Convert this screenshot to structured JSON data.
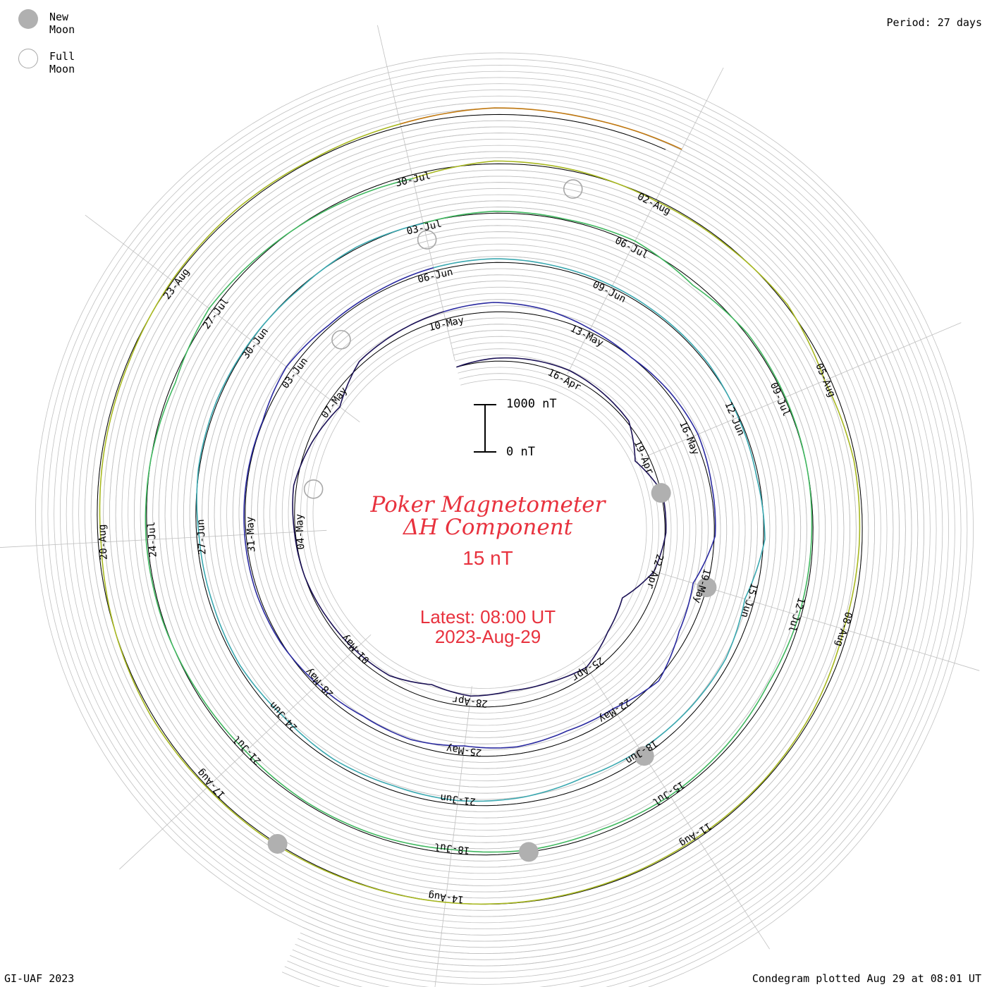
{
  "legend": {
    "new_moon_label": "New Moon",
    "full_moon_label": "Full Moon"
  },
  "period_label": "Period: 27 days",
  "title_line1": "Poker Magnetometer",
  "title_line2": "ΔH Component",
  "units_label": "15 nT",
  "latest_line1": "Latest: 08:00 UT",
  "latest_line2": "2023-Aug-29",
  "scale_bar": {
    "top_label": "1000 nT",
    "bottom_label": "0 nT"
  },
  "footer_left": "GI-UAF 2023",
  "footer_right": "Condegram plotted Aug 29 at 08:01 UT",
  "colors": {
    "title": "#e8323e",
    "grid": "#c0c0c0",
    "moon_new": "#b0b0b0",
    "moon_full": "#a8a8a8"
  },
  "chart_data": {
    "type": "line",
    "chart_style": "spiral condegram (polar time series)",
    "period_days": 27,
    "start_date": "2023-04-13",
    "end_date": "2023-08-29",
    "y_unit": "nT",
    "scale_ticks": [
      0,
      1000
    ],
    "date_labels": [
      {
        "label": "16-Apr",
        "date": "2023-04-16"
      },
      {
        "label": "19-Apr",
        "date": "2023-04-19"
      },
      {
        "label": "22-Apr",
        "date": "2023-04-22"
      },
      {
        "label": "25-Apr",
        "date": "2023-04-25"
      },
      {
        "label": "28-Apr",
        "date": "2023-04-28"
      },
      {
        "label": "01-May",
        "date": "2023-05-01"
      },
      {
        "label": "04-May",
        "date": "2023-05-04"
      },
      {
        "label": "07-May",
        "date": "2023-05-07"
      },
      {
        "label": "10-May",
        "date": "2023-05-10"
      },
      {
        "label": "13-May",
        "date": "2023-05-13"
      },
      {
        "label": "16-May",
        "date": "2023-05-16"
      },
      {
        "label": "19-May",
        "date": "2023-05-19"
      },
      {
        "label": "22-May",
        "date": "2023-05-22"
      },
      {
        "label": "25-May",
        "date": "2023-05-25"
      },
      {
        "label": "28-May",
        "date": "2023-05-28"
      },
      {
        "label": "31-May",
        "date": "2023-05-31"
      },
      {
        "label": "03-Jun",
        "date": "2023-06-03"
      },
      {
        "label": "06-Jun",
        "date": "2023-06-06"
      },
      {
        "label": "09-Jun",
        "date": "2023-06-09"
      },
      {
        "label": "12-Jun",
        "date": "2023-06-12"
      },
      {
        "label": "15-Jun",
        "date": "2023-06-15"
      },
      {
        "label": "18-Jun",
        "date": "2023-06-18"
      },
      {
        "label": "21-Jun",
        "date": "2023-06-21"
      },
      {
        "label": "24-Jun",
        "date": "2023-06-24"
      },
      {
        "label": "27-Jun",
        "date": "2023-06-27"
      },
      {
        "label": "30-Jun",
        "date": "2023-06-30"
      },
      {
        "label": "03-Jul",
        "date": "2023-07-03"
      },
      {
        "label": "06-Jul",
        "date": "2023-07-06"
      },
      {
        "label": "09-Jul",
        "date": "2023-07-09"
      },
      {
        "label": "12-Jul",
        "date": "2023-07-12"
      },
      {
        "label": "15-Jul",
        "date": "2023-07-15"
      },
      {
        "label": "18-Jul",
        "date": "2023-07-18"
      },
      {
        "label": "21-Jul",
        "date": "2023-07-21"
      },
      {
        "label": "24-Jul",
        "date": "2023-07-24"
      },
      {
        "label": "27-Jul",
        "date": "2023-07-27"
      },
      {
        "label": "30-Jul",
        "date": "2023-07-30"
      },
      {
        "label": "02-Aug",
        "date": "2023-08-02"
      },
      {
        "label": "05-Aug",
        "date": "2023-08-05"
      },
      {
        "label": "08-Aug",
        "date": "2023-08-08"
      },
      {
        "label": "11-Aug",
        "date": "2023-08-11"
      },
      {
        "label": "14-Aug",
        "date": "2023-08-14"
      },
      {
        "label": "17-Aug",
        "date": "2023-08-17"
      },
      {
        "label": "20-Aug",
        "date": "2023-08-20"
      },
      {
        "label": "23-Aug",
        "date": "2023-08-23"
      }
    ],
    "new_moons": [
      "2023-04-20",
      "2023-05-19",
      "2023-06-18",
      "2023-07-17",
      "2023-08-16"
    ],
    "full_moons": [
      "2023-05-05",
      "2023-06-04",
      "2023-07-03",
      "2023-08-01"
    ],
    "dH_series": [
      {
        "date": "2023-04-13",
        "value": 0
      },
      {
        "date": "2023-04-14",
        "value": 60
      },
      {
        "date": "2023-04-15",
        "value": 90
      },
      {
        "date": "2023-04-16",
        "value": 120
      },
      {
        "date": "2023-04-17",
        "value": 80
      },
      {
        "date": "2023-04-18",
        "value": 40
      },
      {
        "date": "2023-04-19",
        "value": -300
      },
      {
        "date": "2023-04-20",
        "value": 30
      },
      {
        "date": "2023-04-21",
        "value": 20
      },
      {
        "date": "2023-04-22",
        "value": -120
      },
      {
        "date": "2023-04-23",
        "value": -550
      },
      {
        "date": "2023-04-24",
        "value": -400
      },
      {
        "date": "2023-04-25",
        "value": -150
      },
      {
        "date": "2023-04-26",
        "value": -250
      },
      {
        "date": "2023-04-27",
        "value": -300
      },
      {
        "date": "2023-04-28",
        "value": -220
      },
      {
        "date": "2023-04-29",
        "value": -300
      },
      {
        "date": "2023-04-30",
        "value": -100
      },
      {
        "date": "2023-05-01",
        "value": -80
      },
      {
        "date": "2023-05-02",
        "value": -50
      },
      {
        "date": "2023-05-03",
        "value": 0
      },
      {
        "date": "2023-05-04",
        "value": 20
      },
      {
        "date": "2023-05-05",
        "value": 60
      },
      {
        "date": "2023-05-06",
        "value": -80
      },
      {
        "date": "2023-05-07",
        "value": -250
      },
      {
        "date": "2023-05-08",
        "value": 80
      },
      {
        "date": "2023-05-09",
        "value": 120
      },
      {
        "date": "2023-05-10",
        "value": 160
      },
      {
        "date": "2023-05-11",
        "value": 200
      },
      {
        "date": "2023-05-12",
        "value": 150
      },
      {
        "date": "2023-05-13",
        "value": 60
      },
      {
        "date": "2023-05-14",
        "value": 0
      },
      {
        "date": "2023-05-15",
        "value": 60
      },
      {
        "date": "2023-05-16",
        "value": 100
      },
      {
        "date": "2023-05-17",
        "value": 40
      },
      {
        "date": "2023-05-18",
        "value": 20
      },
      {
        "date": "2023-05-19",
        "value": -300
      },
      {
        "date": "2023-05-20",
        "value": -200
      },
      {
        "date": "2023-05-21",
        "value": 50
      },
      {
        "date": "2023-05-22",
        "value": -150
      },
      {
        "date": "2023-05-23",
        "value": -200
      },
      {
        "date": "2023-05-24",
        "value": -150
      },
      {
        "date": "2023-05-25",
        "value": -200
      },
      {
        "date": "2023-05-26",
        "value": -100
      },
      {
        "date": "2023-05-27",
        "value": -120
      },
      {
        "date": "2023-05-28",
        "value": -50
      },
      {
        "date": "2023-05-29",
        "value": 20
      },
      {
        "date": "2023-05-30",
        "value": 40
      },
      {
        "date": "2023-05-31",
        "value": 30
      },
      {
        "date": "2023-06-01",
        "value": 20
      },
      {
        "date": "2023-06-02",
        "value": 10
      },
      {
        "date": "2023-06-03",
        "value": 120
      },
      {
        "date": "2023-06-04",
        "value": 40
      },
      {
        "date": "2023-06-05",
        "value": 40
      },
      {
        "date": "2023-06-06",
        "value": 70
      },
      {
        "date": "2023-06-07",
        "value": 80
      },
      {
        "date": "2023-06-08",
        "value": 50
      },
      {
        "date": "2023-06-09",
        "value": 40
      },
      {
        "date": "2023-06-10",
        "value": 30
      },
      {
        "date": "2023-06-11",
        "value": 30
      },
      {
        "date": "2023-06-12",
        "value": -20
      },
      {
        "date": "2023-06-13",
        "value": -40
      },
      {
        "date": "2023-06-14",
        "value": 30
      },
      {
        "date": "2023-06-15",
        "value": -200
      },
      {
        "date": "2023-06-16",
        "value": -100
      },
      {
        "date": "2023-06-17",
        "value": -120
      },
      {
        "date": "2023-06-18",
        "value": -150
      },
      {
        "date": "2023-06-19",
        "value": -200
      },
      {
        "date": "2023-06-20",
        "value": -120
      },
      {
        "date": "2023-06-21",
        "value": -80
      },
      {
        "date": "2023-06-22",
        "value": -100
      },
      {
        "date": "2023-06-23",
        "value": -60
      },
      {
        "date": "2023-06-24",
        "value": -100
      },
      {
        "date": "2023-06-25",
        "value": -40
      },
      {
        "date": "2023-06-26",
        "value": -60
      },
      {
        "date": "2023-06-27",
        "value": -50
      },
      {
        "date": "2023-06-28",
        "value": 20
      },
      {
        "date": "2023-06-29",
        "value": 30
      },
      {
        "date": "2023-06-30",
        "value": 10
      },
      {
        "date": "2023-07-01",
        "value": -20
      },
      {
        "date": "2023-07-02",
        "value": 30
      },
      {
        "date": "2023-07-03",
        "value": -10
      },
      {
        "date": "2023-07-04",
        "value": 40
      },
      {
        "date": "2023-07-05",
        "value": 20
      },
      {
        "date": "2023-07-06",
        "value": 60
      },
      {
        "date": "2023-07-07",
        "value": -80
      },
      {
        "date": "2023-07-08",
        "value": 30
      },
      {
        "date": "2023-07-09",
        "value": 20
      },
      {
        "date": "2023-07-10",
        "value": 0
      },
      {
        "date": "2023-07-11",
        "value": -30
      },
      {
        "date": "2023-07-12",
        "value": -50
      },
      {
        "date": "2023-07-13",
        "value": -100
      },
      {
        "date": "2023-07-14",
        "value": -60
      },
      {
        "date": "2023-07-15",
        "value": -40
      },
      {
        "date": "2023-07-16",
        "value": -80
      },
      {
        "date": "2023-07-17",
        "value": -40
      },
      {
        "date": "2023-07-18",
        "value": -80
      },
      {
        "date": "2023-07-19",
        "value": -40
      },
      {
        "date": "2023-07-20",
        "value": -30
      },
      {
        "date": "2023-07-21",
        "value": -60
      },
      {
        "date": "2023-07-22",
        "value": -30
      },
      {
        "date": "2023-07-23",
        "value": 20
      },
      {
        "date": "2023-07-24",
        "value": 30
      },
      {
        "date": "2023-07-25",
        "value": 0
      },
      {
        "date": "2023-07-26",
        "value": -60
      },
      {
        "date": "2023-07-27",
        "value": 80
      },
      {
        "date": "2023-07-28",
        "value": 20
      },
      {
        "date": "2023-07-29",
        "value": -30
      },
      {
        "date": "2023-07-30",
        "value": -80
      },
      {
        "date": "2023-07-31",
        "value": 60
      },
      {
        "date": "2023-08-01",
        "value": 30
      },
      {
        "date": "2023-08-02",
        "value": -30
      },
      {
        "date": "2023-08-03",
        "value": -20
      },
      {
        "date": "2023-08-04",
        "value": 30
      },
      {
        "date": "2023-08-05",
        "value": -120
      },
      {
        "date": "2023-08-06",
        "value": -40
      },
      {
        "date": "2023-08-07",
        "value": -60
      },
      {
        "date": "2023-08-08",
        "value": -100
      },
      {
        "date": "2023-08-09",
        "value": -40
      },
      {
        "date": "2023-08-10",
        "value": -20
      },
      {
        "date": "2023-08-11",
        "value": -30
      },
      {
        "date": "2023-08-12",
        "value": -20
      },
      {
        "date": "2023-08-13",
        "value": -10
      },
      {
        "date": "2023-08-14",
        "value": 0
      },
      {
        "date": "2023-08-15",
        "value": 10
      },
      {
        "date": "2023-08-16",
        "value": 30
      },
      {
        "date": "2023-08-17",
        "value": 20
      },
      {
        "date": "2023-08-18",
        "value": 40
      },
      {
        "date": "2023-08-19",
        "value": 0
      },
      {
        "date": "2023-08-20",
        "value": -60
      },
      {
        "date": "2023-08-21",
        "value": -40
      },
      {
        "date": "2023-08-22",
        "value": -30
      },
      {
        "date": "2023-08-23",
        "value": 20
      },
      {
        "date": "2023-08-24",
        "value": 40
      },
      {
        "date": "2023-08-25",
        "value": 20
      },
      {
        "date": "2023-08-26",
        "value": 60
      },
      {
        "date": "2023-08-27",
        "value": 140
      },
      {
        "date": "2023-08-28",
        "value": 120
      },
      {
        "date": "2023-08-29",
        "value": 150
      }
    ],
    "turn_colors": [
      "#1a1055",
      "#2a2aa0",
      "#3aa8b0",
      "#40b860",
      "#a8b820",
      "#c07810",
      "#b02010"
    ],
    "grid": true,
    "legend_position": "top-left"
  }
}
